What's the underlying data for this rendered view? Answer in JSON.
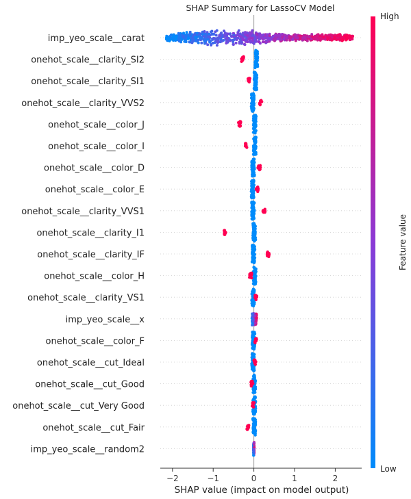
{
  "chart_data": {
    "type": "scatter",
    "subtype": "shap-beeswarm",
    "title": "SHAP Summary for LassoCV Model",
    "xlabel": "SHAP value (impact on model output)",
    "xlim": [
      -2.3,
      2.65
    ],
    "xticks": [
      -2,
      -1,
      0,
      1,
      2
    ],
    "zero_line": 0,
    "colorbar": {
      "label": "Feature value",
      "high_label": "High",
      "low_label": "Low",
      "low_color": "#008bfb",
      "high_color": "#ff0052"
    },
    "features": [
      {
        "name": "imp_yeo_scale__carat",
        "kind": "continuous",
        "range": [
          -2.15,
          2.45
        ],
        "density": "high"
      },
      {
        "name": "onehot_scale__clarity_SI2",
        "kind": "binary",
        "low_value": 0.06,
        "high_value": -0.28
      },
      {
        "name": "onehot_scale__clarity_SI1",
        "kind": "binary",
        "low_value": 0.04,
        "high_value": -0.12
      },
      {
        "name": "onehot_scale__clarity_VVS2",
        "kind": "binary",
        "low_value": -0.03,
        "high_value": 0.17
      },
      {
        "name": "onehot_scale__color_J",
        "kind": "binary",
        "low_value": 0.02,
        "high_value": -0.35
      },
      {
        "name": "onehot_scale__color_I",
        "kind": "binary",
        "low_value": 0.02,
        "high_value": -0.2
      },
      {
        "name": "onehot_scale__color_D",
        "kind": "binary",
        "low_value": -0.02,
        "high_value": 0.13
      },
      {
        "name": "onehot_scale__color_E",
        "kind": "binary",
        "low_value": -0.03,
        "high_value": 0.08
      },
      {
        "name": "onehot_scale__clarity_VVS1",
        "kind": "binary",
        "low_value": -0.02,
        "high_value": 0.25
      },
      {
        "name": "onehot_scale__clarity_I1",
        "kind": "binary",
        "low_value": 0.01,
        "high_value": -0.72
      },
      {
        "name": "onehot_scale__clarity_IF",
        "kind": "binary",
        "low_value": -0.01,
        "high_value": 0.35
      },
      {
        "name": "onehot_scale__color_H",
        "kind": "binary",
        "low_value": 0.02,
        "high_value": -0.08
      },
      {
        "name": "onehot_scale__clarity_VS1",
        "kind": "binary",
        "low_value": -0.02,
        "high_value": 0.05
      },
      {
        "name": "imp_yeo_scale__x",
        "kind": "continuous",
        "range": [
          -0.05,
          0.07
        ],
        "density": "low"
      },
      {
        "name": "onehot_scale__color_F",
        "kind": "binary",
        "low_value": -0.01,
        "high_value": 0.05
      },
      {
        "name": "onehot_scale__cut_Ideal",
        "kind": "binary",
        "low_value": -0.02,
        "high_value": 0.02
      },
      {
        "name": "onehot_scale__cut_Good",
        "kind": "binary",
        "low_value": 0.01,
        "high_value": -0.05
      },
      {
        "name": "onehot_scale__cut_Very Good",
        "kind": "binary",
        "low_value": 0.01,
        "high_value": -0.02
      },
      {
        "name": "onehot_scale__cut_Fair",
        "kind": "binary",
        "low_value": 0.01,
        "high_value": -0.15
      },
      {
        "name": "imp_yeo_scale__random2",
        "kind": "continuous",
        "range": [
          -0.01,
          0.01
        ],
        "density": "low"
      }
    ]
  }
}
